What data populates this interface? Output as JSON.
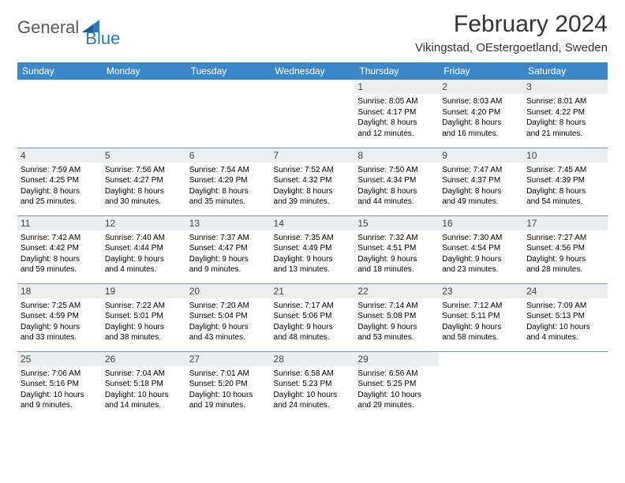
{
  "logo": {
    "text1": "General",
    "text2": "Blue"
  },
  "title": "February 2024",
  "location": "Vikingstad, OEstergoetland, Sweden",
  "colors": {
    "header_bg": "#3d87c7",
    "header_text": "#ffffff",
    "daynum_bg": "#eceff2",
    "border": "#7a99b5",
    "logo_gray": "#5a5a5a",
    "logo_blue": "#2b7bbf"
  },
  "day_headers": [
    "Sunday",
    "Monday",
    "Tuesday",
    "Wednesday",
    "Thursday",
    "Friday",
    "Saturday"
  ],
  "weeks": [
    [
      null,
      null,
      null,
      null,
      {
        "n": "1",
        "sr": "Sunrise: 8:05 AM",
        "ss": "Sunset: 4:17 PM",
        "d1": "Daylight: 8 hours",
        "d2": "and 12 minutes."
      },
      {
        "n": "2",
        "sr": "Sunrise: 8:03 AM",
        "ss": "Sunset: 4:20 PM",
        "d1": "Daylight: 8 hours",
        "d2": "and 16 minutes."
      },
      {
        "n": "3",
        "sr": "Sunrise: 8:01 AM",
        "ss": "Sunset: 4:22 PM",
        "d1": "Daylight: 8 hours",
        "d2": "and 21 minutes."
      }
    ],
    [
      {
        "n": "4",
        "sr": "Sunrise: 7:59 AM",
        "ss": "Sunset: 4:25 PM",
        "d1": "Daylight: 8 hours",
        "d2": "and 25 minutes."
      },
      {
        "n": "5",
        "sr": "Sunrise: 7:56 AM",
        "ss": "Sunset: 4:27 PM",
        "d1": "Daylight: 8 hours",
        "d2": "and 30 minutes."
      },
      {
        "n": "6",
        "sr": "Sunrise: 7:54 AM",
        "ss": "Sunset: 4:29 PM",
        "d1": "Daylight: 8 hours",
        "d2": "and 35 minutes."
      },
      {
        "n": "7",
        "sr": "Sunrise: 7:52 AM",
        "ss": "Sunset: 4:32 PM",
        "d1": "Daylight: 8 hours",
        "d2": "and 39 minutes."
      },
      {
        "n": "8",
        "sr": "Sunrise: 7:50 AM",
        "ss": "Sunset: 4:34 PM",
        "d1": "Daylight: 8 hours",
        "d2": "and 44 minutes."
      },
      {
        "n": "9",
        "sr": "Sunrise: 7:47 AM",
        "ss": "Sunset: 4:37 PM",
        "d1": "Daylight: 8 hours",
        "d2": "and 49 minutes."
      },
      {
        "n": "10",
        "sr": "Sunrise: 7:45 AM",
        "ss": "Sunset: 4:39 PM",
        "d1": "Daylight: 8 hours",
        "d2": "and 54 minutes."
      }
    ],
    [
      {
        "n": "11",
        "sr": "Sunrise: 7:42 AM",
        "ss": "Sunset: 4:42 PM",
        "d1": "Daylight: 8 hours",
        "d2": "and 59 minutes."
      },
      {
        "n": "12",
        "sr": "Sunrise: 7:40 AM",
        "ss": "Sunset: 4:44 PM",
        "d1": "Daylight: 9 hours",
        "d2": "and 4 minutes."
      },
      {
        "n": "13",
        "sr": "Sunrise: 7:37 AM",
        "ss": "Sunset: 4:47 PM",
        "d1": "Daylight: 9 hours",
        "d2": "and 9 minutes."
      },
      {
        "n": "14",
        "sr": "Sunrise: 7:35 AM",
        "ss": "Sunset: 4:49 PM",
        "d1": "Daylight: 9 hours",
        "d2": "and 13 minutes."
      },
      {
        "n": "15",
        "sr": "Sunrise: 7:32 AM",
        "ss": "Sunset: 4:51 PM",
        "d1": "Daylight: 9 hours",
        "d2": "and 18 minutes."
      },
      {
        "n": "16",
        "sr": "Sunrise: 7:30 AM",
        "ss": "Sunset: 4:54 PM",
        "d1": "Daylight: 9 hours",
        "d2": "and 23 minutes."
      },
      {
        "n": "17",
        "sr": "Sunrise: 7:27 AM",
        "ss": "Sunset: 4:56 PM",
        "d1": "Daylight: 9 hours",
        "d2": "and 28 minutes."
      }
    ],
    [
      {
        "n": "18",
        "sr": "Sunrise: 7:25 AM",
        "ss": "Sunset: 4:59 PM",
        "d1": "Daylight: 9 hours",
        "d2": "and 33 minutes."
      },
      {
        "n": "19",
        "sr": "Sunrise: 7:22 AM",
        "ss": "Sunset: 5:01 PM",
        "d1": "Daylight: 9 hours",
        "d2": "and 38 minutes."
      },
      {
        "n": "20",
        "sr": "Sunrise: 7:20 AM",
        "ss": "Sunset: 5:04 PM",
        "d1": "Daylight: 9 hours",
        "d2": "and 43 minutes."
      },
      {
        "n": "21",
        "sr": "Sunrise: 7:17 AM",
        "ss": "Sunset: 5:06 PM",
        "d1": "Daylight: 9 hours",
        "d2": "and 48 minutes."
      },
      {
        "n": "22",
        "sr": "Sunrise: 7:14 AM",
        "ss": "Sunset: 5:08 PM",
        "d1": "Daylight: 9 hours",
        "d2": "and 53 minutes."
      },
      {
        "n": "23",
        "sr": "Sunrise: 7:12 AM",
        "ss": "Sunset: 5:11 PM",
        "d1": "Daylight: 9 hours",
        "d2": "and 58 minutes."
      },
      {
        "n": "24",
        "sr": "Sunrise: 7:09 AM",
        "ss": "Sunset: 5:13 PM",
        "d1": "Daylight: 10 hours",
        "d2": "and 4 minutes."
      }
    ],
    [
      {
        "n": "25",
        "sr": "Sunrise: 7:06 AM",
        "ss": "Sunset: 5:16 PM",
        "d1": "Daylight: 10 hours",
        "d2": "and 9 minutes."
      },
      {
        "n": "26",
        "sr": "Sunrise: 7:04 AM",
        "ss": "Sunset: 5:18 PM",
        "d1": "Daylight: 10 hours",
        "d2": "and 14 minutes."
      },
      {
        "n": "27",
        "sr": "Sunrise: 7:01 AM",
        "ss": "Sunset: 5:20 PM",
        "d1": "Daylight: 10 hours",
        "d2": "and 19 minutes."
      },
      {
        "n": "28",
        "sr": "Sunrise: 6:58 AM",
        "ss": "Sunset: 5:23 PM",
        "d1": "Daylight: 10 hours",
        "d2": "and 24 minutes."
      },
      {
        "n": "29",
        "sr": "Sunrise: 6:56 AM",
        "ss": "Sunset: 5:25 PM",
        "d1": "Daylight: 10 hours",
        "d2": "and 29 minutes."
      },
      null,
      null
    ]
  ]
}
